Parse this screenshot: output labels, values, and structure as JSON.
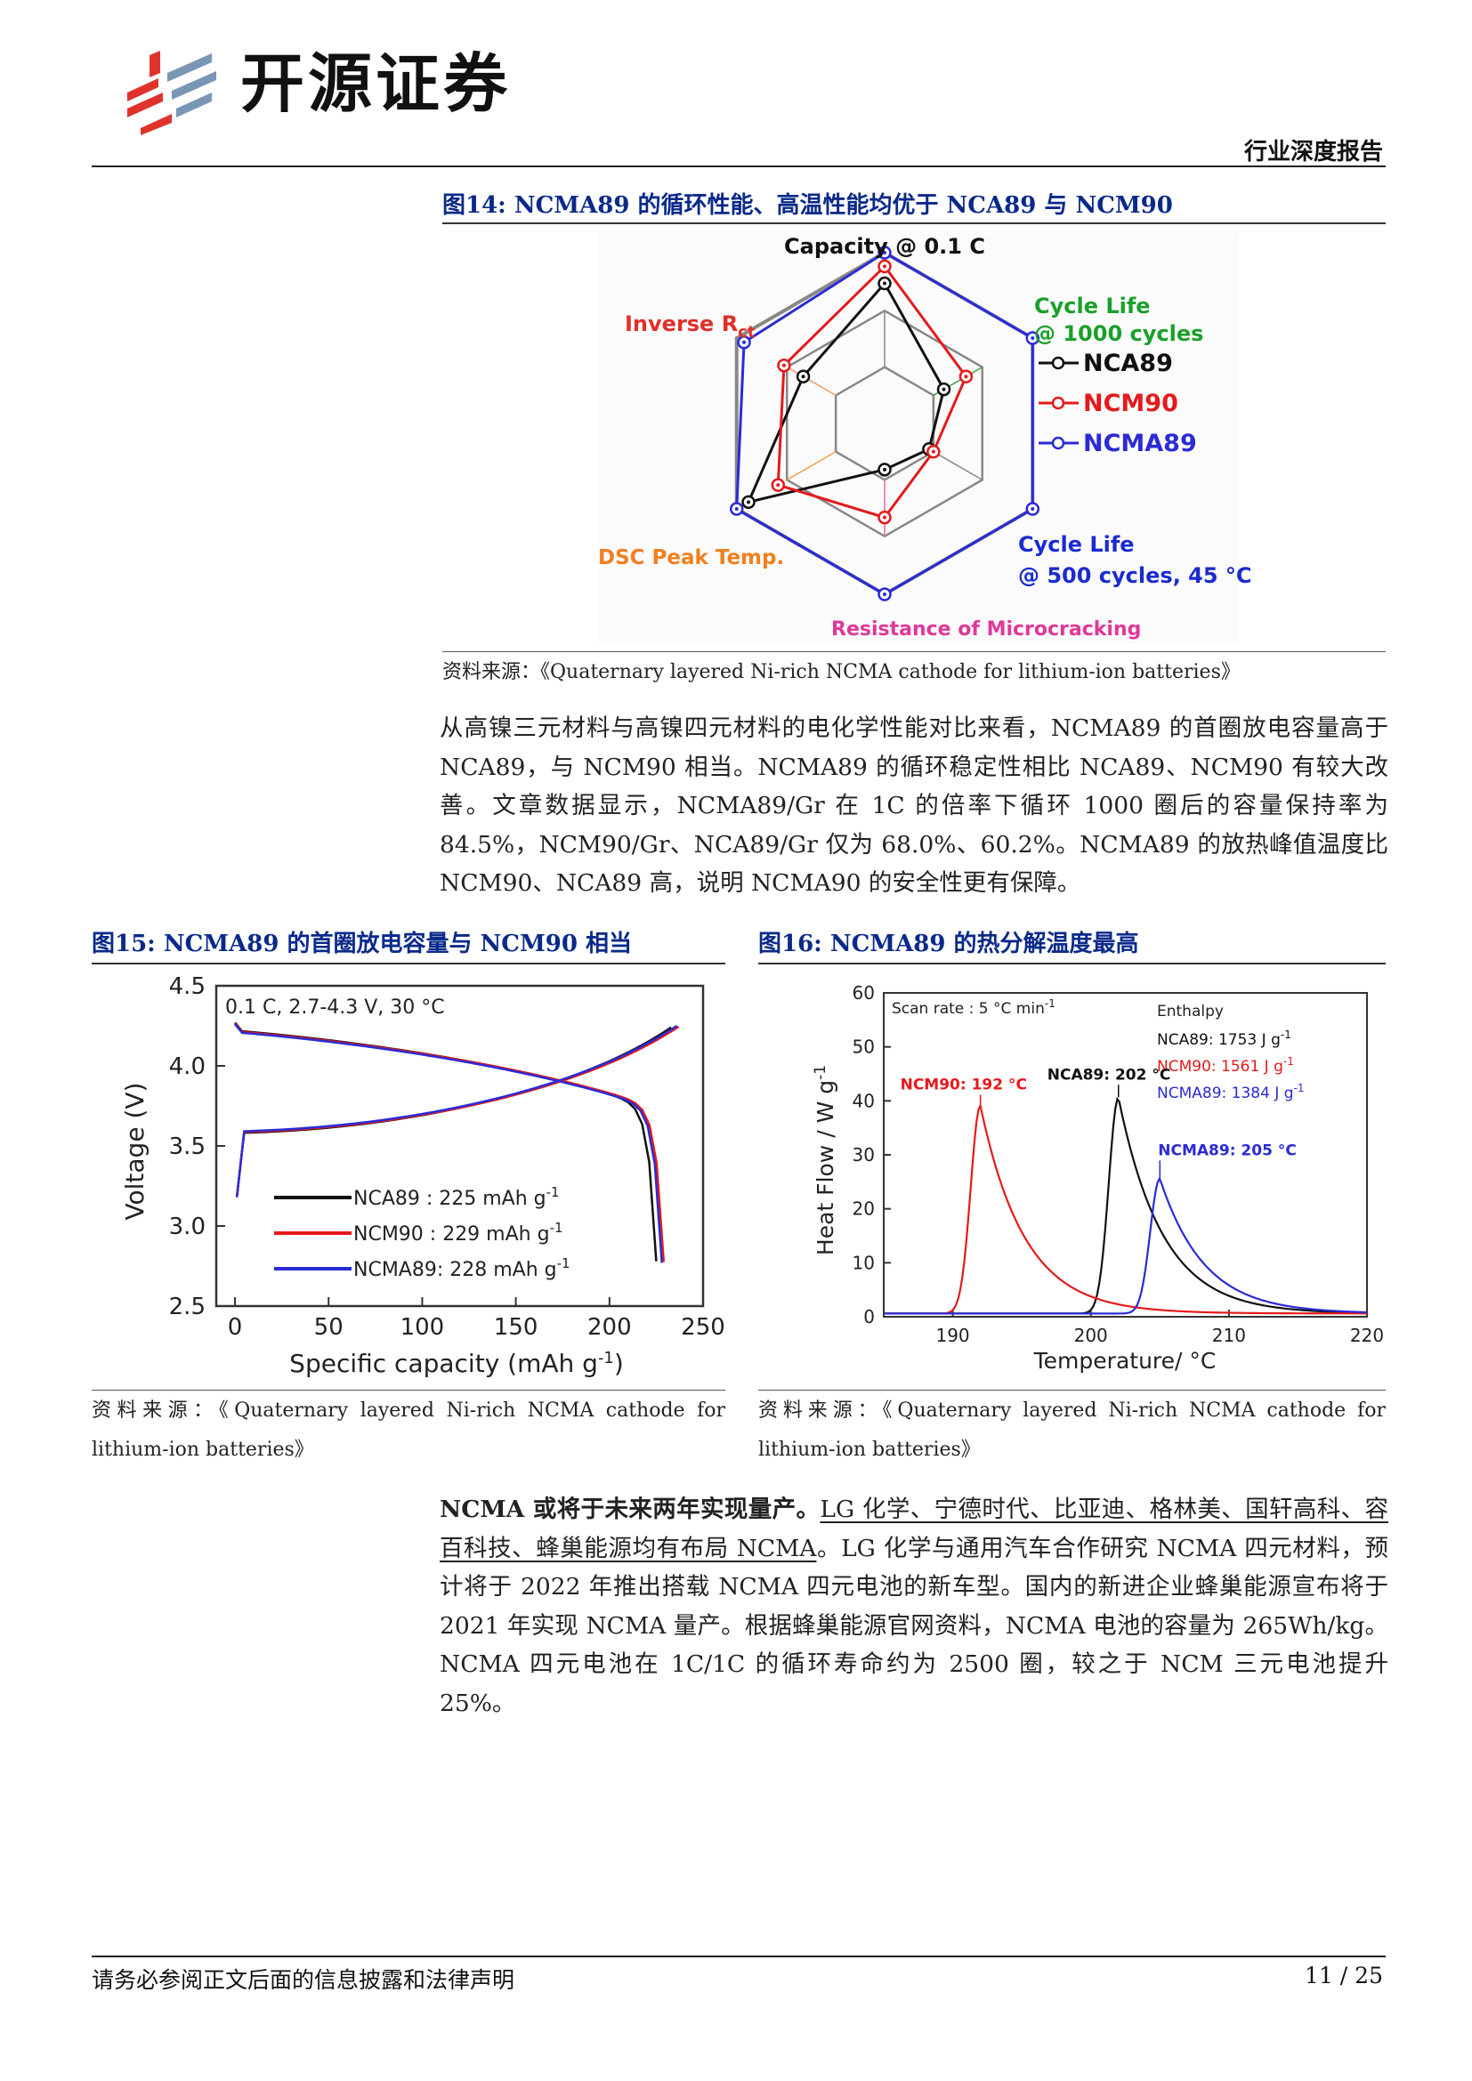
{
  "header": {
    "logo_text": "开源证券",
    "report_type": "行业深度报告"
  },
  "figure14": {
    "title": "图14:  NCMA89 的循环性能、高温性能均优于 NCA89 与 NCM90",
    "source": "资料来源：《Quaternary layered Ni-rich NCMA cathode for lithium-ion batteries》",
    "chart_data": {
      "type": "radar",
      "axes": [
        "Capacity @ 0.1 C",
        "Cycle Life @ 1000 cycles",
        "Cycle Life @ 500 cycles, 45 °C",
        "Resistance of Microcracking",
        "DSC Peak Temp.",
        "Inverse Rct"
      ],
      "axis_labels": {
        "top": "Capacity @ 0.1 C",
        "upper_right_1": "Cycle Life",
        "upper_right_2": "@ 1000 cycles",
        "lower_right_1": "Cycle Life",
        "lower_right_2": "@ 500 cycles, 45 °C",
        "bottom": "Resistance of Microcracking",
        "lower_left": "DSC Peak Temp.",
        "upper_left": "Inverse R",
        "upper_left_sub": "ct"
      },
      "series": [
        {
          "name": "NCA89",
          "color": "#111111",
          "values": [
            0.82,
            0.4,
            0.3,
            0.27,
            0.92,
            0.55
          ]
        },
        {
          "name": "NCM90",
          "color": "#e41a1c",
          "values": [
            0.92,
            0.55,
            0.33,
            0.55,
            0.72,
            0.68
          ]
        },
        {
          "name": "NCMA89",
          "color": "#2b2bd6",
          "values": [
            1.0,
            1.0,
            1.0,
            1.0,
            1.0,
            0.95
          ]
        }
      ],
      "legend": [
        "NCA89",
        "NCM90",
        "NCMA89"
      ]
    }
  },
  "para1": "从高镍三元材料与高镍四元材料的电化学性能对比来看，NCMA89 的首圈放电容量高于 NCA89，与 NCM90 相当。NCMA89 的循环稳定性相比 NCA89、NCM90 有较大改善。文章数据显示，NCMA89/Gr 在 1C 的倍率下循环 1000 圈后的容量保持率为 84.5%，NCM90/Gr、NCA89/Gr 仅为 68.0%、60.2%。NCMA89 的放热峰值温度比 NCM90、NCA89 高，说明 NCMA90 的安全性更有保障。",
  "figure15": {
    "title": "图15:  NCMA89 的首圈放电容量与 NCM90 相当",
    "source": "资料来源：《Quaternary layered Ni-rich NCMA cathode for lithium-ion batteries》",
    "chart_data": {
      "type": "line",
      "annotation": "0.1 C, 2.7-4.3 V, 30 °C",
      "xlabel": "Specific capacity (mAh g",
      "xlabel_sup": "-1",
      "ylabel": "Voltage (V)",
      "xlim": [
        -10,
        250
      ],
      "ylim": [
        2.5,
        4.5
      ],
      "xticks": [
        "0",
        "50",
        "100",
        "150",
        "200",
        "250"
      ],
      "yticks": [
        "2.5",
        "3.0",
        "3.5",
        "4.0",
        "4.5"
      ],
      "series": [
        {
          "name": "NCA89  : 225 mAh g",
          "sup": "-1",
          "color": "#111111",
          "discharge_capacity": 225
        },
        {
          "name": "NCM90  : 229 mAh g",
          "sup": "-1",
          "color": "#e41a1c",
          "discharge_capacity": 229
        },
        {
          "name": "NCMA89: 228 mAh g",
          "sup": "-1",
          "color": "#2b2bd6",
          "discharge_capacity": 228
        }
      ]
    }
  },
  "figure16": {
    "title": "图16:  NCMA89 的热分解温度最高",
    "source": "资料来源：《Quaternary layered Ni-rich NCMA cathode for lithium-ion batteries》",
    "chart_data": {
      "type": "line",
      "annotation": "Scan rate : 5 °C min",
      "annotation_sup": "-1",
      "xlabel": "Temperature/ °C",
      "ylabel": "Heat Flow / W g",
      "ylabel_sup": "-1",
      "xlim": [
        185,
        220
      ],
      "ylim": [
        0,
        60
      ],
      "xticks": [
        "190",
        "200",
        "210",
        "220"
      ],
      "yticks": [
        "0",
        "10",
        "20",
        "30",
        "40",
        "50",
        "60"
      ],
      "enthalpy_title": "Enthalpy",
      "series": [
        {
          "name": "NCA89",
          "color": "#111111",
          "peak_temp": 202,
          "peak_value": 40,
          "peak_label": "NCA89: 202 °C",
          "enthalpy": "NCA89: 1753 J g"
        },
        {
          "name": "NCM90",
          "color": "#e41a1c",
          "peak_temp": 192,
          "peak_value": 38.5,
          "peak_label": "NCM90: 192 °C",
          "enthalpy": "NCM90: 1561 J g"
        },
        {
          "name": "NCMA89",
          "color": "#2b2bd6",
          "peak_temp": 205,
          "peak_value": 25,
          "peak_label": "NCMA89: 205 °C",
          "enthalpy": "NCMA89: 1384 J g"
        }
      ]
    }
  },
  "para2": {
    "bold": "NCMA 或将于未来两年实现量产。",
    "underlined": "LG 化学、宁德时代、比亚迪、格林美、国轩高科、容百科技、蜂巢能源均有布局 NCMA",
    "rest": "。LG 化学与通用汽车合作研究 NCMA 四元材料，预计将于 2022 年推出搭载 NCMA 四元电池的新车型。国内的新进企业蜂巢能源宣布将于 2021 年实现 NCMA 量产。根据蜂巢能源官网资料，NCMA 电池的容量为 265Wh/kg。NCMA 四元电池在 1C/1C 的循环寿命约为 2500 圈，较之于 NCM 三元电池提升 25%。"
  },
  "footer": {
    "note": "请务必参阅正文后面的信息披露和法律声明",
    "page": "11 / 25"
  }
}
